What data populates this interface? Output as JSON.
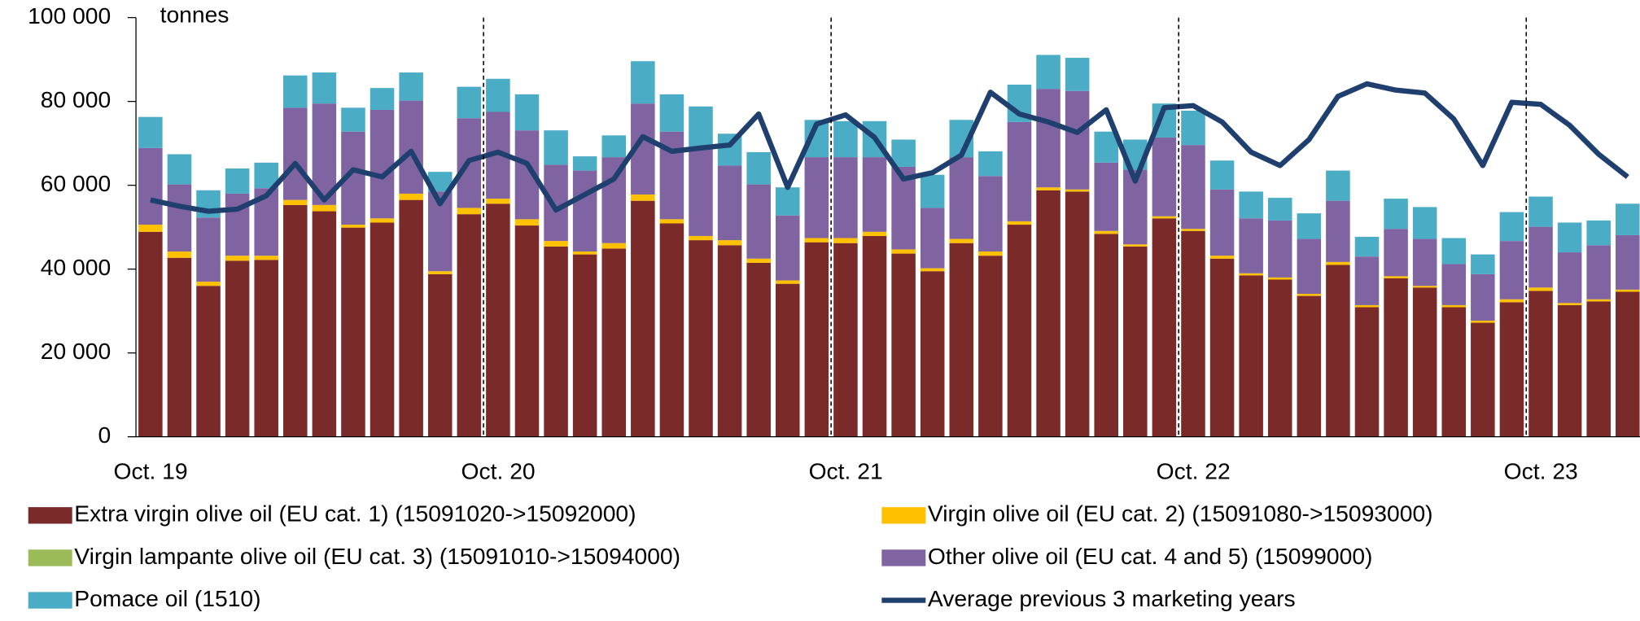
{
  "chart_data": {
    "type": "stacked-bar-line",
    "y_unit": "tonnes",
    "categories": [
      "Oct. 19",
      null,
      null,
      null,
      null,
      null,
      null,
      null,
      null,
      null,
      null,
      null,
      "Oct. 20",
      null,
      null,
      null,
      null,
      null,
      null,
      null,
      null,
      null,
      null,
      null,
      "Oct. 21",
      null,
      null,
      null,
      null,
      null,
      null,
      null,
      null,
      null,
      null,
      null,
      "Oct. 22",
      null,
      null,
      null,
      null,
      null,
      null,
      null,
      null,
      null,
      null,
      null,
      "Oct. 23",
      null,
      null,
      null
    ],
    "series": [
      {
        "name": "Extra virgin olive oil (EU cat. 1) (15091020->15092000)",
        "color": "#7b2a2a",
        "kind": "bar",
        "values": [
          48.9,
          42.7,
          36,
          42,
          42.2,
          55.3,
          53.8,
          49.9,
          51.1,
          56.5,
          38.8,
          53.1,
          55.6,
          50.4,
          45.4,
          43.5,
          44.9,
          56.3,
          50.9,
          46.9,
          45.7,
          41.5,
          36.5,
          46.4,
          46.2,
          47.9,
          43.7,
          39.5,
          46.2,
          43.2,
          50.6,
          58.8,
          58.5,
          48.4,
          45.4,
          52.1,
          49.1,
          42.5,
          38.5,
          37.5,
          33.6,
          41,
          30.9,
          37.8,
          35.6,
          30.9,
          27.2,
          32.1,
          34.8,
          31.4,
          32.3,
          34.6
        ]
      },
      {
        "name": "Virgin olive oil (EU cat. 2) (15091080->15093000)",
        "color": "#ffc000",
        "kind": "bar",
        "values": [
          1.7,
          1.5,
          1,
          1.2,
          1,
          1.2,
          1.5,
          0.7,
          1,
          1.5,
          0.7,
          1.5,
          1.2,
          1.5,
          1.3,
          0.7,
          1.3,
          1.5,
          1,
          1,
          1.2,
          1,
          0.8,
          1,
          1.2,
          1,
          1,
          0.7,
          1,
          1,
          0.8,
          0.7,
          0.5,
          0.7,
          0.5,
          0.5,
          0.5,
          0.7,
          0.5,
          0.5,
          0.5,
          0.7,
          0.5,
          0.5,
          0.4,
          0.5,
          0.5,
          0.7,
          0.8,
          0.5,
          0.5,
          0.5
        ]
      },
      {
        "name": "Virgin lampante olive oil (EU cat. 3) (15091010->15094000)",
        "color": "#9bbb59",
        "kind": "bar",
        "values": [
          0,
          0,
          0,
          0,
          0,
          0,
          0,
          0,
          0,
          0,
          0,
          0,
          0,
          0,
          0,
          0,
          0,
          0,
          0,
          0,
          0,
          0,
          0,
          0,
          0,
          0,
          0,
          0,
          0,
          0,
          0,
          0,
          0,
          0,
          0,
          0,
          0,
          0,
          0,
          0,
          0,
          0,
          0,
          0,
          0,
          0,
          0,
          0,
          0,
          0,
          0,
          0
        ]
      },
      {
        "name": "Other olive oil (EU cat. 4 and 5) (15099000)",
        "color": "#8064a2",
        "kind": "bar",
        "values": [
          18.3,
          16,
          15.3,
          14.8,
          16.1,
          22,
          24.2,
          22.2,
          25.9,
          22.2,
          19,
          21.4,
          20.7,
          21.2,
          18.2,
          19.3,
          20.5,
          21.7,
          20.9,
          21.2,
          17.8,
          17.7,
          15.5,
          19.3,
          19.3,
          17.8,
          19.7,
          14.4,
          19.5,
          18,
          23.7,
          23.5,
          23.5,
          16.3,
          17.8,
          18.8,
          20,
          15.8,
          13.1,
          13.6,
          13.1,
          14.6,
          11.6,
          11.3,
          11.2,
          9.8,
          11.1,
          13.9,
          14.5,
          12.1,
          12.9,
          13
        ]
      },
      {
        "name": "Pomace oil  (1510)",
        "color": "#4bacc6",
        "kind": "bar",
        "values": [
          7.4,
          7.2,
          6.5,
          6,
          6.1,
          7.7,
          7.4,
          5.7,
          5.2,
          6.7,
          4.7,
          7.5,
          7.9,
          8.6,
          8.2,
          3.4,
          5.2,
          10.1,
          8.9,
          9.7,
          7.6,
          7.7,
          6.7,
          8.9,
          8.6,
          8.6,
          6.5,
          7.9,
          8.9,
          5.9,
          8.9,
          8.1,
          7.9,
          7.4,
          7.2,
          8.1,
          8.2,
          6.9,
          6.4,
          5.4,
          6.1,
          7.2,
          4.7,
          7.2,
          7.6,
          6.2,
          4.7,
          6.9,
          7.2,
          7.1,
          5.9,
          7.5
        ]
      },
      {
        "name": "Average previous 3 marketing years",
        "color": "#1f3f6e",
        "kind": "line",
        "values": [
          56.5,
          55,
          53.8,
          54.3,
          57.5,
          65.2,
          56.5,
          63.7,
          62,
          68.1,
          55.6,
          65.9,
          67.9,
          65.2,
          54.1,
          57.8,
          61.5,
          71.6,
          68.1,
          68.9,
          69.6,
          77,
          59.5,
          74.6,
          76.8,
          71.4,
          61.5,
          63,
          67.2,
          82.2,
          77,
          75.1,
          72.6,
          78,
          61,
          78.5,
          79,
          75.1,
          67.9,
          64.7,
          70.9,
          81.2,
          84.2,
          82.7,
          82,
          75.8,
          64.7,
          79.8,
          79.3,
          74.3,
          67.4,
          62
        ]
      }
    ],
    "ylim": [
      0,
      100
    ],
    "yticks": [
      0,
      {
        "value": 20,
        "label": "20 000"
      },
      {
        "value": 40,
        "label": "40 000"
      },
      {
        "value": 60,
        "label": "60 000"
      },
      {
        "value": 80,
        "label": "80 000"
      },
      {
        "value": 100,
        "label": "100 000"
      }
    ]
  }
}
